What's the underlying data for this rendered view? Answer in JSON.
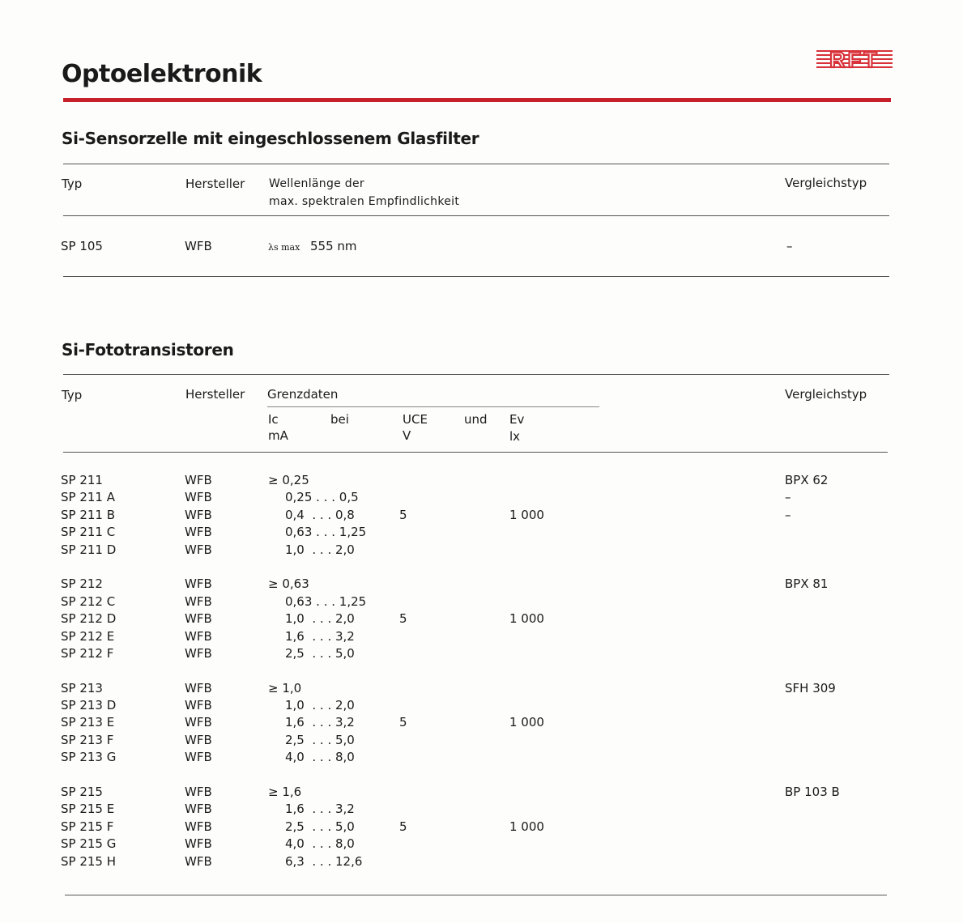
{
  "title": "Optoelektronik",
  "logo_text": "RFT",
  "colors": {
    "accent_red": "#c8202a",
    "text": "#1a1a1a"
  },
  "section1": {
    "heading": "Si-Sensorzelle mit eingeschlossenem Glasfilter",
    "headers": {
      "typ": "Typ",
      "hersteller": "Hersteller",
      "wellen_1": "Wellenlänge der",
      "wellen_2": "max. spektralen Empfindlichkeit",
      "vergleich": "Vergleichstyp"
    },
    "row": {
      "typ": "SP 105",
      "hersteller": "WFB",
      "lambda_symbol": "λs max",
      "value": "555 nm",
      "vergleich": "–"
    }
  },
  "section2": {
    "heading": "Si-Fototransistoren",
    "headers": {
      "typ": "Typ",
      "hersteller": "Hersteller",
      "grenzdaten": "Grenzdaten",
      "ic": "Ic",
      "bei": "bei",
      "uce": "UCE",
      "und": "und",
      "ev": "Ev",
      "ic_unit": "mA",
      "uce_unit": "V",
      "ev_unit": "lx",
      "vergleich": "Vergleichstyp"
    },
    "groups": [
      {
        "uce": "5",
        "ev": "1 000",
        "rows": [
          {
            "typ": "SP 211",
            "hersteller": "WFB",
            "ic": "≥ 0,25",
            "vergleich": "BPX 62"
          },
          {
            "typ": "SP 211 A",
            "hersteller": "WFB",
            "ic": "0,25 . . . 0,5",
            "vergleich": "–"
          },
          {
            "typ": "SP 211 B",
            "hersteller": "WFB",
            "ic": "0,4  . . . 0,8",
            "vergleich": "–"
          },
          {
            "typ": "SP 211 C",
            "hersteller": "WFB",
            "ic": "0,63 . . . 1,25",
            "vergleich": ""
          },
          {
            "typ": "SP 211 D",
            "hersteller": "WFB",
            "ic": "1,0  . . . 2,0",
            "vergleich": ""
          }
        ]
      },
      {
        "uce": "5",
        "ev": "1 000",
        "rows": [
          {
            "typ": "SP 212",
            "hersteller": "WFB",
            "ic": "≥ 0,63",
            "vergleich": "BPX 81"
          },
          {
            "typ": "SP 212 C",
            "hersteller": "WFB",
            "ic": "0,63 . . . 1,25",
            "vergleich": ""
          },
          {
            "typ": "SP 212 D",
            "hersteller": "WFB",
            "ic": "1,0  . . . 2,0",
            "vergleich": ""
          },
          {
            "typ": "SP 212 E",
            "hersteller": "WFB",
            "ic": "1,6  . . . 3,2",
            "vergleich": ""
          },
          {
            "typ": "SP 212 F",
            "hersteller": "WFB",
            "ic": "2,5  . . . 5,0",
            "vergleich": ""
          }
        ]
      },
      {
        "uce": "5",
        "ev": "1 000",
        "rows": [
          {
            "typ": "SP 213",
            "hersteller": "WFB",
            "ic": "≥ 1,0",
            "vergleich": "SFH 309"
          },
          {
            "typ": "SP 213 D",
            "hersteller": "WFB",
            "ic": "1,0  . . . 2,0",
            "vergleich": ""
          },
          {
            "typ": "SP 213 E",
            "hersteller": "WFB",
            "ic": "1,6  . . . 3,2",
            "vergleich": ""
          },
          {
            "typ": "SP 213 F",
            "hersteller": "WFB",
            "ic": "2,5  . . . 5,0",
            "vergleich": ""
          },
          {
            "typ": "SP 213 G",
            "hersteller": "WFB",
            "ic": "4,0  . . . 8,0",
            "vergleich": ""
          }
        ]
      },
      {
        "uce": "5",
        "ev": "1 000",
        "rows": [
          {
            "typ": "SP 215",
            "hersteller": "WFB",
            "ic": "≥ 1,6",
            "vergleich": "BP 103 B"
          },
          {
            "typ": "SP 215 E",
            "hersteller": "WFB",
            "ic": "1,6  . . . 3,2",
            "vergleich": ""
          },
          {
            "typ": "SP 215 F",
            "hersteller": "WFB",
            "ic": "2,5  . . . 5,0",
            "vergleich": ""
          },
          {
            "typ": "SP 215 G",
            "hersteller": "WFB",
            "ic": "4,0  . . . 8,0",
            "vergleich": ""
          },
          {
            "typ": "SP 215 H",
            "hersteller": "WFB",
            "ic": "6,3  . . . 12,6",
            "vergleich": ""
          }
        ]
      }
    ]
  }
}
